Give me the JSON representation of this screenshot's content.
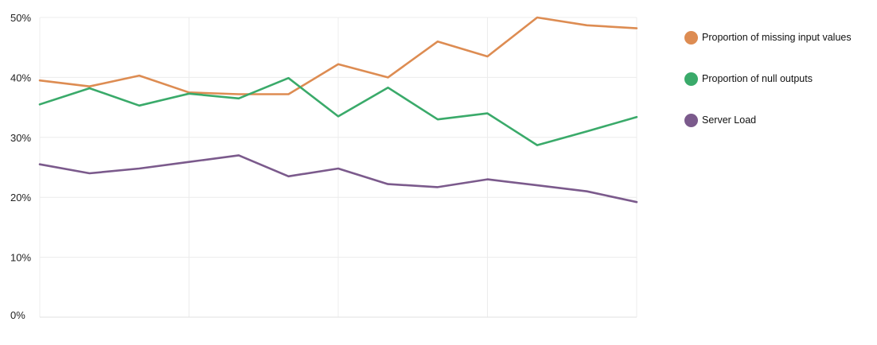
{
  "chart_data": {
    "type": "line",
    "title": "",
    "xlabel": "",
    "ylabel": "",
    "ylim": [
      0,
      50
    ],
    "yticks": [
      0,
      10,
      20,
      30,
      40,
      50
    ],
    "ytick_labels": [
      "0%",
      "10%",
      "20%",
      "30%",
      "40%",
      "50%"
    ],
    "grid": true,
    "legend_position": "right",
    "x": [
      1,
      2,
      3,
      4,
      5,
      6,
      7,
      8,
      9,
      10,
      11,
      12,
      13
    ],
    "series": [
      {
        "name": "Proportion of missing input values",
        "color": "#dd8c52",
        "values": [
          39.5,
          38.5,
          40.3,
          37.5,
          37.2,
          37.2,
          42.2,
          40.0,
          46.0,
          43.5,
          50.0,
          48.7,
          48.2
        ]
      },
      {
        "name": "Proportion of null outputs",
        "color": "#3aaa6a",
        "values": [
          35.5,
          38.2,
          35.3,
          37.3,
          36.5,
          39.9,
          33.5,
          38.3,
          33.0,
          34.0,
          28.7,
          31.0,
          33.4
        ]
      },
      {
        "name": "Server Load",
        "color": "#7b5a8c",
        "values": [
          25.5,
          24.0,
          24.8,
          25.9,
          27.0,
          23.5,
          24.8,
          22.2,
          21.7,
          23.0,
          22.0,
          21.0,
          19.2
        ]
      }
    ]
  }
}
